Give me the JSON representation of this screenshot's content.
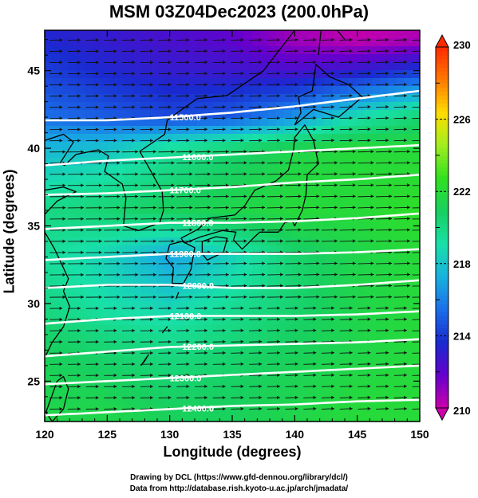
{
  "title": "MSM 03Z04Dec2023 (200.0hPa)",
  "chart_data": {
    "type": "heatmap",
    "title": "MSM 03Z04Dec2023 (200.0hPa)",
    "xlabel": "Longitude (degrees)",
    "ylabel": "Latitude  (degrees)",
    "xlim": [
      120,
      150
    ],
    "ylim": [
      22.4,
      47.6
    ],
    "x_ticks": [
      120,
      125,
      130,
      135,
      140,
      145,
      150
    ],
    "y_ticks": [
      25,
      30,
      35,
      40,
      45
    ],
    "grid": false,
    "colorbar": {
      "ticks": [
        210,
        214,
        218,
        222,
        226,
        230
      ],
      "min": 210,
      "max": 230,
      "colors": [
        "#cc00aa",
        "#6600cc",
        "#1a2ad0",
        "#1a6ee8",
        "#18b0e0",
        "#18e0a8",
        "#18d060",
        "#30e020",
        "#a0ee20",
        "#ffdd00",
        "#ff7a00",
        "#ff2a00"
      ]
    },
    "temperature_field": [
      {
        "lat": 47,
        "lon": [
          120,
          125,
          130,
          135,
          140,
          145,
          150
        ],
        "values": [
          213.5,
          213.0,
          212.5,
          212.0,
          210.8,
          210.2,
          210.5
        ]
      },
      {
        "lat": 45,
        "lon": [
          120,
          125,
          130,
          135,
          140,
          145,
          150
        ],
        "values": [
          214.2,
          213.5,
          213.0,
          212.8,
          212.5,
          213.0,
          214.0
        ]
      },
      {
        "lat": 42,
        "lon": [
          120,
          125,
          130,
          135,
          140,
          145,
          150
        ],
        "values": [
          215.5,
          215.0,
          214.5,
          215.0,
          216.5,
          219.0,
          220.5
        ]
      },
      {
        "lat": 40,
        "lon": [
          120,
          125,
          130,
          135,
          140,
          145,
          150
        ],
        "values": [
          217.5,
          218.0,
          219.5,
          220.5,
          221.5,
          222.0,
          222.0
        ]
      },
      {
        "lat": 36,
        "lon": [
          120,
          125,
          130,
          135,
          140,
          145,
          150
        ],
        "values": [
          220.0,
          220.5,
          221.0,
          221.5,
          222.0,
          222.0,
          222.5
        ]
      },
      {
        "lat": 33,
        "lon": [
          120,
          125,
          130,
          135,
          140,
          145,
          150
        ],
        "values": [
          219.5,
          218.5,
          217.0,
          218.5,
          220.5,
          221.5,
          222.0
        ]
      },
      {
        "lat": 30,
        "lon": [
          120,
          125,
          130,
          135,
          140,
          145,
          150
        ],
        "values": [
          220.0,
          219.0,
          218.5,
          219.5,
          220.5,
          221.5,
          222.0
        ]
      },
      {
        "lat": 27,
        "lon": [
          120,
          125,
          130,
          135,
          140,
          145,
          150
        ],
        "values": [
          221.0,
          220.5,
          220.0,
          220.5,
          221.0,
          221.5,
          222.0
        ]
      },
      {
        "lat": 23,
        "lon": [
          120,
          125,
          130,
          135,
          140,
          145,
          150
        ],
        "values": [
          221.5,
          221.5,
          221.0,
          221.0,
          221.5,
          222.0,
          222.0
        ]
      }
    ],
    "height_contours": [
      {
        "label": "11500.0",
        "lat": [
          41.8,
          41.8,
          42.0,
          42.3,
          42.7,
          43.2,
          43.7
        ]
      },
      {
        "label": "11600.0",
        "lat": [
          38.9,
          39.2,
          39.4,
          39.6,
          39.8,
          40.0,
          40.2
        ]
      },
      {
        "label": "11700.0",
        "lat": [
          37.0,
          37.1,
          37.3,
          37.5,
          37.8,
          38.0,
          38.3
        ]
      },
      {
        "label": "11800.0",
        "lat": [
          34.8,
          35.0,
          35.2,
          35.2,
          35.3,
          35.5,
          35.8
        ]
      },
      {
        "label": "11900.0",
        "lat": [
          32.8,
          33.0,
          33.2,
          33.2,
          33.2,
          33.3,
          33.5
        ]
      },
      {
        "label": "12000.0",
        "lat": [
          31.0,
          31.2,
          31.2,
          31.0,
          31.0,
          31.2,
          31.5
        ]
      },
      {
        "label": "12100.0",
        "lat": [
          28.7,
          29.0,
          29.2,
          29.2,
          29.2,
          29.3,
          29.5
        ]
      },
      {
        "label": "12200.0",
        "lat": [
          26.6,
          26.9,
          27.2,
          27.3,
          27.4,
          27.5,
          27.7
        ]
      },
      {
        "label": "12300.0",
        "lat": [
          24.8,
          25.0,
          25.2,
          25.4,
          25.6,
          25.8,
          26.0
        ]
      },
      {
        "label": "12400.0",
        "lat": [
          22.8,
          23.0,
          23.2,
          23.4,
          23.5,
          23.7,
          23.8
        ]
      }
    ]
  },
  "credits": {
    "line1": "Drawing by DCL (https://www.gfd-dennou.org/library/dcl/)",
    "line2": "Data from http://database.rish.kyoto-u.ac.jp/arch/jmadata/"
  }
}
